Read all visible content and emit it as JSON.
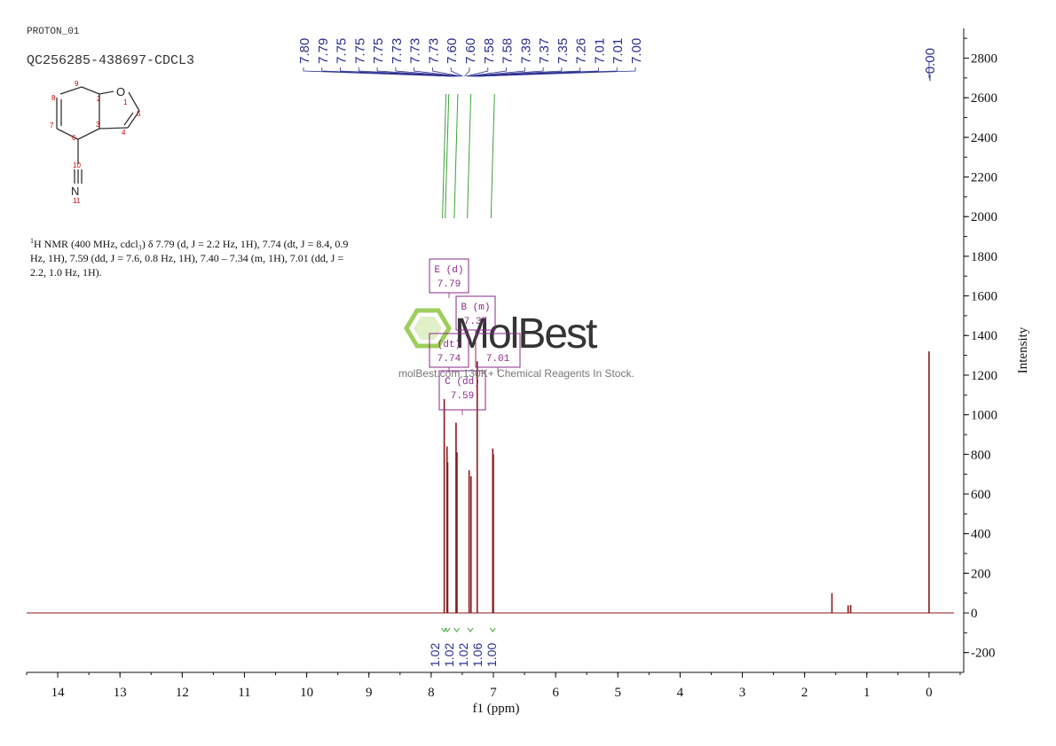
{
  "header": {
    "experiment": "PROTON_01",
    "sample": "QC256285-438697-CDCL3"
  },
  "structure": {
    "atom_labels": [
      "1",
      "2",
      "3",
      "4",
      "5",
      "6",
      "7",
      "8",
      "9",
      "10",
      "11"
    ],
    "O_label": "O",
    "N_label": "N"
  },
  "description": {
    "sup": "1",
    "text": "H NMR (400 MHz, cdcl₃) δ 7.79 (d, J = 2.2 Hz, 1H), 7.74 (dt, J = 8.4, 0.9 Hz, 1H), 7.59 (dd, J = 7.6, 0.8 Hz, 1H), 7.40 – 7.34 (m, 1H), 7.01 (dd, J = 2.2, 1.0 Hz, 1H)."
  },
  "watermark": {
    "brand": "MolBest",
    "sub": "molBest.com,130K+ Chemical Reagents In Stock."
  },
  "chart_data": {
    "type": "line",
    "xlabel": "f1 (ppm)",
    "ylabel": "Intensity",
    "xlim": [
      14.5,
      -0.5
    ],
    "ylim": [
      -300,
      2950
    ],
    "x_ticks": [
      14,
      13,
      12,
      11,
      10,
      9,
      8,
      7,
      6,
      5,
      4,
      3,
      2,
      1,
      0
    ],
    "y_ticks": [
      -200,
      0,
      200,
      400,
      600,
      800,
      1000,
      1200,
      1400,
      1600,
      1800,
      2000,
      2200,
      2400,
      2600,
      2800
    ],
    "spectrum_color": "#8b1a1a",
    "peaks": [
      {
        "ppm": 7.79,
        "height": 1080
      },
      {
        "ppm": 7.745,
        "height": 840
      },
      {
        "ppm": 7.735,
        "height": 760
      },
      {
        "ppm": 7.6,
        "height": 960
      },
      {
        "ppm": 7.585,
        "height": 810
      },
      {
        "ppm": 7.39,
        "height": 720
      },
      {
        "ppm": 7.36,
        "height": 690
      },
      {
        "ppm": 7.26,
        "height": 1270
      },
      {
        "ppm": 7.01,
        "height": 830
      },
      {
        "ppm": 7.0,
        "height": 800
      },
      {
        "ppm": 1.56,
        "height": 100
      },
      {
        "ppm": 1.3,
        "height": 38
      },
      {
        "ppm": 1.26,
        "height": 40
      },
      {
        "ppm": 0.0,
        "height": 1320
      }
    ],
    "peak_labels": [
      "7.80",
      "7.79",
      "7.75",
      "7.75",
      "7.75",
      "7.73",
      "7.73",
      "7.73",
      "7.60",
      "7.60",
      "7.58",
      "7.58",
      "7.39",
      "7.37",
      "7.35",
      "7.26",
      "7.01",
      "7.01",
      "7.00"
    ],
    "tms_label": "0.00",
    "integrals": [
      {
        "ppm": 7.79,
        "value": "1.02"
      },
      {
        "ppm": 7.74,
        "value": "1.02"
      },
      {
        "ppm": 7.59,
        "value": "1.02"
      },
      {
        "ppm": 7.37,
        "value": "1.06"
      },
      {
        "ppm": 7.01,
        "value": "1.00"
      }
    ],
    "multiplets": [
      {
        "letter": "E (d)",
        "shift": "7.79"
      },
      {
        "letter": "B (m)",
        "shift": "7.37"
      },
      {
        "letter": "(dt)",
        "shift": "7.74"
      },
      {
        "letter": "",
        "shift": "7.01"
      },
      {
        "letter": "C (dd)",
        "shift": "7.59"
      }
    ]
  }
}
